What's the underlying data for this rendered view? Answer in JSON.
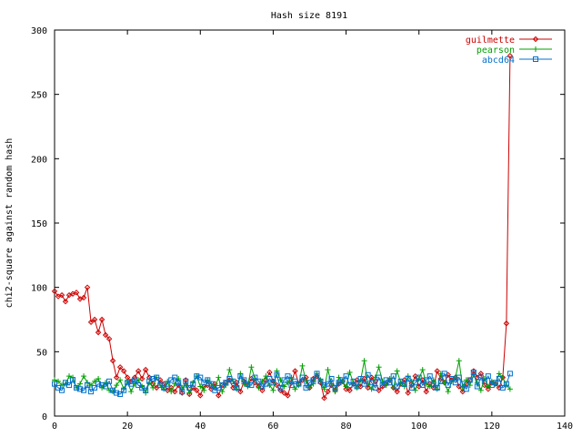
{
  "chart_data": {
    "type": "line",
    "title": "Hash size 8191",
    "xlabel": "",
    "ylabel": "chi2-square against random hash",
    "xlim": [
      0,
      140
    ],
    "ylim": [
      0,
      300
    ],
    "xticks": [
      0,
      20,
      40,
      60,
      80,
      100,
      120,
      140
    ],
    "yticks": [
      0,
      50,
      100,
      150,
      200,
      250,
      300
    ],
    "grid": false,
    "legend": "top-right",
    "x": [
      0,
      1,
      2,
      3,
      4,
      5,
      6,
      7,
      8,
      9,
      10,
      11,
      12,
      13,
      14,
      15,
      16,
      17,
      18,
      19,
      20,
      21,
      22,
      23,
      24,
      25,
      26,
      27,
      28,
      29,
      30,
      31,
      32,
      33,
      34,
      35,
      36,
      37,
      38,
      39,
      40,
      41,
      42,
      43,
      44,
      45,
      46,
      47,
      48,
      49,
      50,
      51,
      52,
      53,
      54,
      55,
      56,
      57,
      58,
      59,
      60,
      61,
      62,
      63,
      64,
      65,
      66,
      67,
      68,
      69,
      70,
      71,
      72,
      73,
      74,
      75,
      76,
      77,
      78,
      79,
      80,
      81,
      82,
      83,
      84,
      85,
      86,
      87,
      88,
      89,
      90,
      91,
      92,
      93,
      94,
      95,
      96,
      97,
      98,
      99,
      100,
      101,
      102,
      103,
      104,
      105,
      106,
      107,
      108,
      109,
      110,
      111,
      112,
      113,
      114,
      115,
      116,
      117,
      118,
      119,
      120,
      121,
      122,
      123,
      124,
      125
    ],
    "series": [
      {
        "name": "guilmette",
        "color": "#cc0000",
        "marker": "diamond",
        "values": [
          97,
          93,
          94,
          89,
          94,
          95,
          96,
          91,
          92,
          100,
          73,
          75,
          65,
          75,
          63,
          60,
          43,
          30,
          38,
          35,
          30,
          27,
          30,
          35,
          29,
          36,
          30,
          25,
          22,
          28,
          25,
          20,
          22,
          19,
          24,
          18,
          28,
          17,
          22,
          20,
          16,
          23,
          24,
          21,
          25,
          16,
          24,
          26,
          28,
          22,
          26,
          19,
          27,
          24,
          29,
          26,
          23,
          20,
          28,
          34,
          27,
          24,
          20,
          18,
          16,
          26,
          35,
          25,
          28,
          30,
          22,
          29,
          31,
          26,
          14,
          19,
          24,
          20,
          25,
          27,
          21,
          20,
          25,
          28,
          23,
          29,
          22,
          30,
          27,
          20,
          23,
          25,
          28,
          22,
          19,
          25,
          28,
          18,
          25,
          31,
          23,
          28,
          19,
          25,
          22,
          35,
          29,
          26,
          32,
          28,
          30,
          23,
          19,
          25,
          28,
          35,
          30,
          33,
          24,
          21,
          26,
          25,
          22,
          30,
          72,
          280
        ]
      },
      {
        "name": "pearson",
        "color": "#00a000",
        "marker": "plus",
        "values": [
          28,
          27,
          24,
          25,
          31,
          30,
          22,
          25,
          31,
          26,
          24,
          27,
          29,
          22,
          26,
          20,
          19,
          24,
          28,
          21,
          27,
          19,
          25,
          28,
          23,
          18,
          26,
          22,
          30,
          24,
          21,
          27,
          19,
          25,
          29,
          22,
          24,
          18,
          26,
          31,
          23,
          20,
          28,
          25,
          22,
          30,
          19,
          24,
          36,
          27,
          21,
          33,
          25,
          23,
          38,
          29,
          22,
          27,
          31,
          24,
          20,
          35,
          28,
          23,
          26,
          30,
          21,
          24,
          39,
          27,
          22,
          25,
          33,
          28,
          21,
          36,
          25,
          19,
          30,
          27,
          23,
          34,
          26,
          22,
          28,
          43,
          25,
          21,
          30,
          38,
          27,
          24,
          29,
          22,
          35,
          26,
          23,
          31,
          27,
          20,
          29,
          36,
          25,
          23,
          28,
          21,
          33,
          26,
          19,
          27,
          30,
          43,
          22,
          28,
          24,
          32,
          26,
          20,
          29,
          23,
          27,
          25,
          33,
          30,
          24,
          21
        ]
      },
      {
        "name": "abcd64",
        "color": "#0070cc",
        "marker": "square",
        "values": [
          25,
          22,
          20,
          26,
          24,
          28,
          22,
          21,
          20,
          24,
          19,
          22,
          25,
          24,
          23,
          27,
          20,
          18,
          17,
          20,
          26,
          25,
          28,
          24,
          22,
          20,
          27,
          29,
          30,
          24,
          22,
          25,
          28,
          30,
          26,
          19,
          27,
          22,
          25,
          31,
          30,
          26,
          28,
          25,
          20,
          22,
          24,
          26,
          29,
          27,
          22,
          31,
          28,
          25,
          24,
          30,
          27,
          23,
          25,
          29,
          26,
          32,
          22,
          28,
          31,
          24,
          27,
          25,
          30,
          22,
          26,
          28,
          33,
          27,
          24,
          25,
          29,
          22,
          26,
          28,
          31,
          24,
          27,
          23,
          29,
          25,
          32,
          26,
          22,
          30,
          24,
          28,
          26,
          31,
          23,
          27,
          25,
          29,
          22,
          26,
          30,
          24,
          28,
          31,
          25,
          22,
          27,
          33,
          24,
          29,
          26,
          30,
          25,
          21,
          28,
          34,
          23,
          30,
          27,
          31,
          24,
          26,
          29,
          22,
          25,
          33
        ]
      }
    ]
  }
}
